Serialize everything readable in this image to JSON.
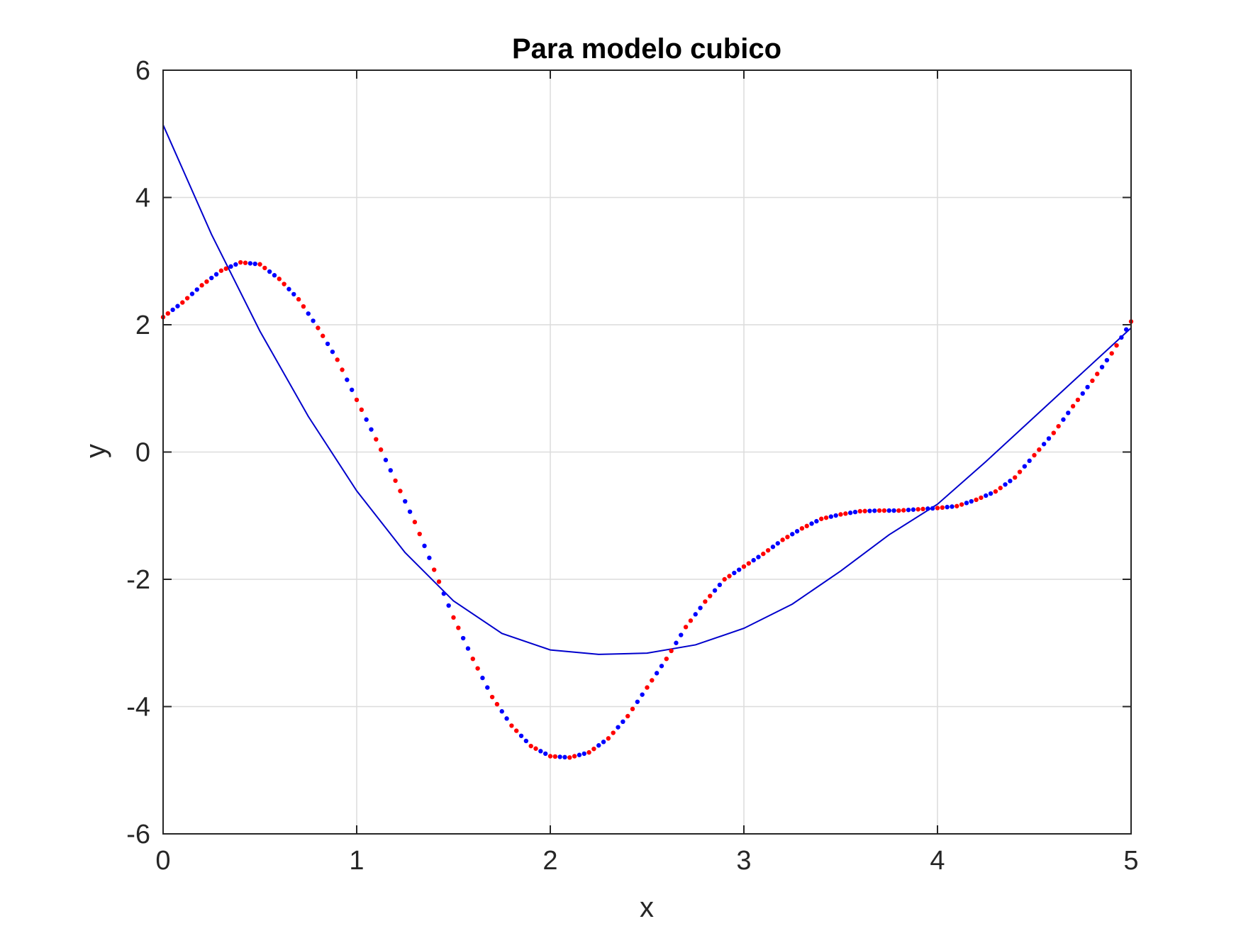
{
  "chart_data": {
    "type": "scatter",
    "title": "Para modelo cubico",
    "xlabel": "x",
    "ylabel": "y",
    "xlim": [
      0,
      5
    ],
    "ylim": [
      -6,
      6
    ],
    "xticks": [
      "0",
      "1",
      "2",
      "3",
      "4",
      "5"
    ],
    "yticks": [
      "6",
      "4",
      "2",
      "0",
      "-2",
      "-4",
      "-6"
    ],
    "grid": true,
    "legend": "none",
    "colors": {
      "points_a": "#ff0000",
      "points_b": "#0000ff",
      "fit": "#0000cc",
      "grid": "#dcdcdc",
      "axes": "#262626"
    },
    "series": [
      {
        "type": "scatter",
        "x": [
          0.0,
          0.1,
          0.2,
          0.3,
          0.4,
          0.5,
          0.6,
          0.7,
          0.8,
          0.9,
          1.0,
          1.1,
          1.2,
          1.3,
          1.4,
          1.5,
          1.6,
          1.7,
          1.8,
          1.9,
          2.0,
          2.1,
          2.2,
          2.3,
          2.4,
          2.5,
          2.6,
          2.7,
          2.8,
          2.9,
          3.0,
          3.1,
          3.2,
          3.3,
          3.4,
          3.5,
          3.6,
          3.7,
          3.8,
          3.9,
          4.0,
          4.1,
          4.2,
          4.3,
          4.4,
          4.5,
          4.6,
          4.7,
          4.8,
          4.9,
          5.0
        ],
        "y": [
          2.12,
          2.35,
          2.62,
          2.85,
          2.98,
          2.95,
          2.72,
          2.4,
          1.95,
          1.45,
          0.82,
          0.2,
          -0.45,
          -1.1,
          -1.85,
          -2.6,
          -3.25,
          -3.85,
          -4.3,
          -4.62,
          -4.78,
          -4.8,
          -4.72,
          -4.5,
          -4.15,
          -3.7,
          -3.25,
          -2.75,
          -2.35,
          -2.0,
          -1.8,
          -1.6,
          -1.38,
          -1.2,
          -1.05,
          -0.98,
          -0.93,
          -0.92,
          -0.92,
          -0.9,
          -0.88,
          -0.85,
          -0.75,
          -0.62,
          -0.4,
          -0.05,
          0.3,
          0.72,
          1.12,
          1.55,
          2.05
        ]
      },
      {
        "type": "line",
        "x": [
          0.0,
          0.25,
          0.5,
          0.75,
          1.0,
          1.25,
          1.5,
          1.75,
          2.0,
          2.25,
          2.5,
          2.75,
          3.0,
          3.25,
          3.5,
          3.75,
          4.0,
          4.25,
          4.5,
          4.75,
          5.0
        ],
        "y": [
          5.14,
          3.42,
          1.9,
          0.56,
          -0.61,
          -1.58,
          -2.34,
          -2.85,
          -3.11,
          -3.18,
          -3.16,
          -3.03,
          -2.77,
          -2.39,
          -1.87,
          -1.3,
          -0.82,
          -0.15,
          0.55,
          1.25,
          1.95
        ]
      }
    ]
  }
}
